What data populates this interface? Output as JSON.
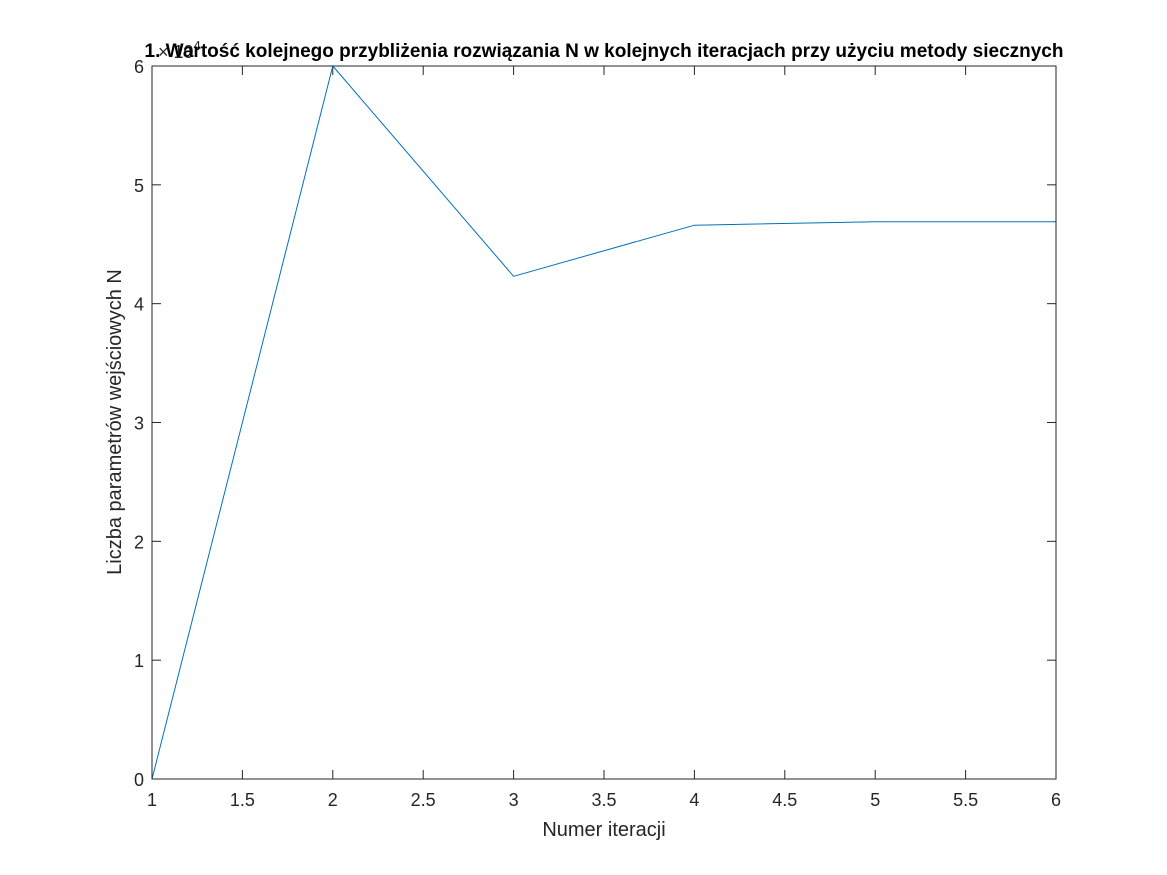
{
  "chart_data": {
    "type": "line",
    "title": "1. Wartość kolejnego przybliżenia rozwiązania N w kolejnych iteracjach przy użyciu metody siecznych",
    "xlabel": "Numer iteracji",
    "ylabel": "Liczba parametrów wejściowych N",
    "y_exponent_base": "× 10",
    "y_exponent_power": "4",
    "xlim": [
      1,
      6
    ],
    "ylim": [
      0,
      60000
    ],
    "x_ticks": [
      1,
      1.5,
      2,
      2.5,
      3,
      3.5,
      4,
      4.5,
      5,
      5.5,
      6
    ],
    "x_tick_labels": [
      "1",
      "1.5",
      "2",
      "2.5",
      "3",
      "3.5",
      "4",
      "4.5",
      "5",
      "5.5",
      "6"
    ],
    "y_ticks": [
      0,
      10000,
      20000,
      30000,
      40000,
      50000,
      60000
    ],
    "y_tick_labels": [
      "0",
      "1",
      "2",
      "3",
      "4",
      "5",
      "6"
    ],
    "grid": false,
    "box": true,
    "series": [
      {
        "x": [
          1,
          2,
          3,
          4,
          5,
          6
        ],
        "y": [
          0,
          60000,
          42300,
          46600,
          46900,
          46900
        ],
        "color": "#0072BD"
      }
    ]
  }
}
